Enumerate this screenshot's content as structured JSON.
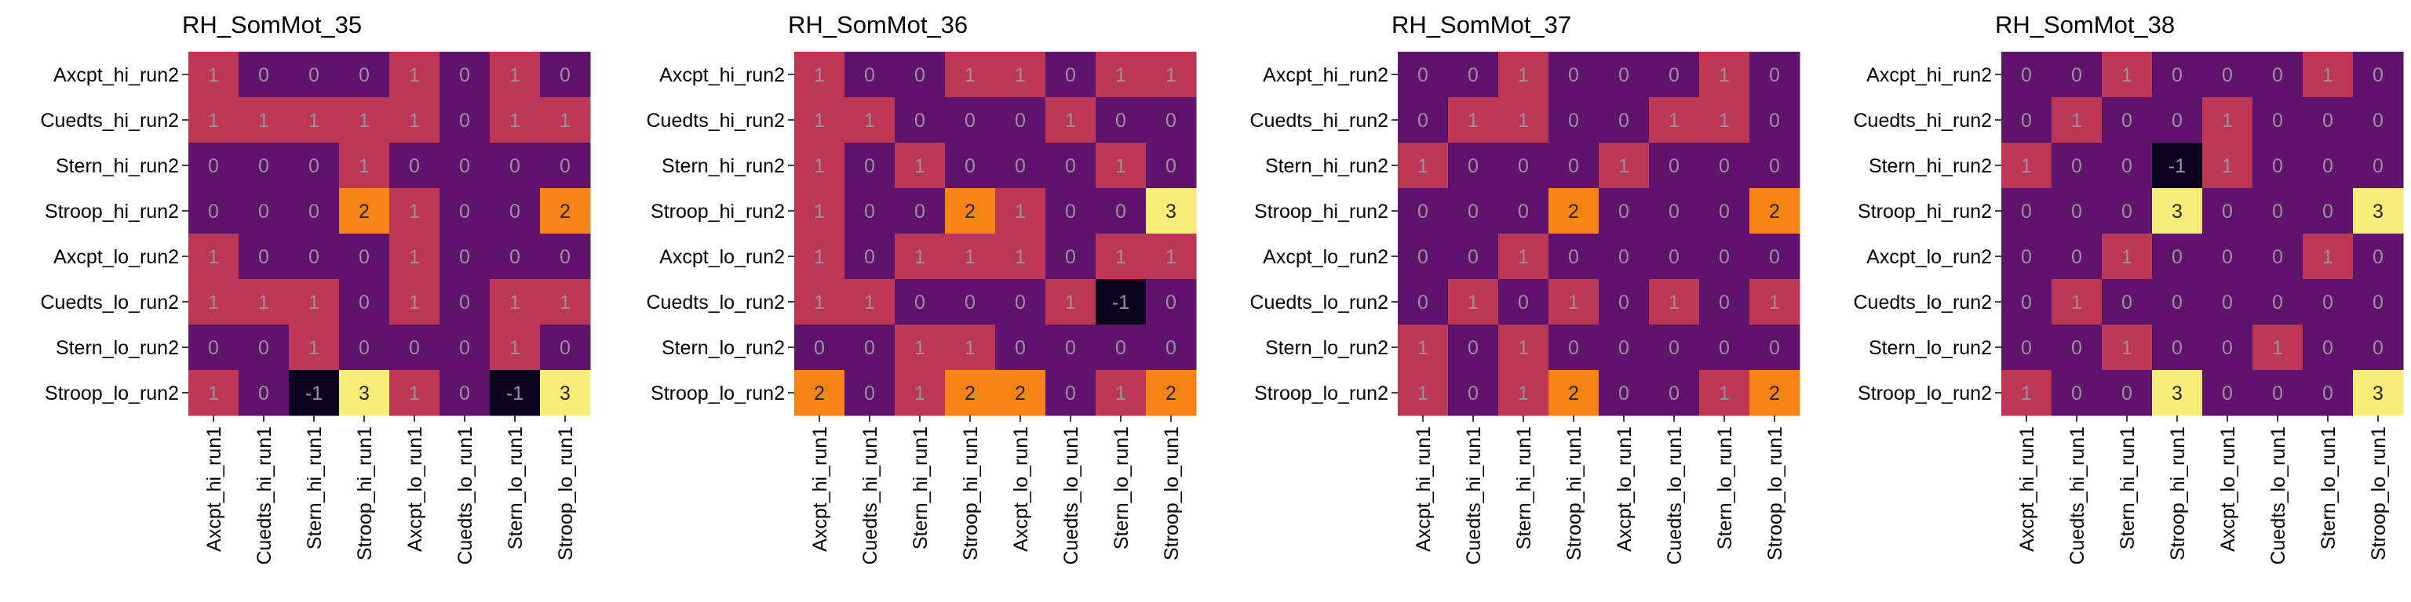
{
  "chart_data": [
    {
      "type": "heatmap",
      "title": "RH_SomMot_35",
      "rows": [
        "Axcpt_hi_run2",
        "Cuedts_hi_run2",
        "Stern_hi_run2",
        "Stroop_hi_run2",
        "Axcpt_lo_run2",
        "Cuedts_lo_run2",
        "Stern_lo_run2",
        "Stroop_lo_run2"
      ],
      "cols": [
        "Axcpt_hi_run1",
        "Cuedts_hi_run1",
        "Stern_hi_run1",
        "Stroop_hi_run1",
        "Axcpt_lo_run1",
        "Cuedts_lo_run1",
        "Stern_lo_run1",
        "Stroop_lo_run1"
      ],
      "values": [
        [
          1,
          0,
          0,
          0,
          1,
          0,
          1,
          0
        ],
        [
          1,
          1,
          1,
          1,
          1,
          0,
          1,
          1
        ],
        [
          0,
          0,
          0,
          1,
          0,
          0,
          0,
          0
        ],
        [
          0,
          0,
          0,
          2,
          1,
          0,
          0,
          2
        ],
        [
          1,
          0,
          0,
          0,
          1,
          0,
          0,
          0
        ],
        [
          1,
          1,
          1,
          0,
          1,
          0,
          1,
          1
        ],
        [
          0,
          0,
          1,
          0,
          0,
          0,
          1,
          0
        ],
        [
          1,
          0,
          -1,
          3,
          1,
          0,
          -1,
          3
        ]
      ],
      "colormap": "inferno",
      "vmin": -1.2,
      "vmax": 3.2
    },
    {
      "type": "heatmap",
      "title": "RH_SomMot_36",
      "rows": [
        "Axcpt_hi_run2",
        "Cuedts_hi_run2",
        "Stern_hi_run2",
        "Stroop_hi_run2",
        "Axcpt_lo_run2",
        "Cuedts_lo_run2",
        "Stern_lo_run2",
        "Stroop_lo_run2"
      ],
      "cols": [
        "Axcpt_hi_run1",
        "Cuedts_hi_run1",
        "Stern_hi_run1",
        "Stroop_hi_run1",
        "Axcpt_lo_run1",
        "Cuedts_lo_run1",
        "Stern_lo_run1",
        "Stroop_lo_run1"
      ],
      "values": [
        [
          1,
          0,
          0,
          1,
          1,
          0,
          1,
          1
        ],
        [
          1,
          1,
          0,
          0,
          0,
          1,
          0,
          0
        ],
        [
          1,
          0,
          1,
          0,
          0,
          0,
          1,
          0
        ],
        [
          1,
          0,
          0,
          2,
          1,
          0,
          0,
          3
        ],
        [
          1,
          0,
          1,
          1,
          1,
          0,
          1,
          1
        ],
        [
          1,
          1,
          0,
          0,
          0,
          1,
          -1,
          0
        ],
        [
          0,
          0,
          1,
          1,
          0,
          0,
          0,
          0
        ],
        [
          2,
          0,
          1,
          2,
          2,
          0,
          1,
          2
        ]
      ],
      "colormap": "inferno",
      "vmin": -1.2,
      "vmax": 3.2
    },
    {
      "type": "heatmap",
      "title": "RH_SomMot_37",
      "rows": [
        "Axcpt_hi_run2",
        "Cuedts_hi_run2",
        "Stern_hi_run2",
        "Stroop_hi_run2",
        "Axcpt_lo_run2",
        "Cuedts_lo_run2",
        "Stern_lo_run2",
        "Stroop_lo_run2"
      ],
      "cols": [
        "Axcpt_hi_run1",
        "Cuedts_hi_run1",
        "Stern_hi_run1",
        "Stroop_hi_run1",
        "Axcpt_lo_run1",
        "Cuedts_lo_run1",
        "Stern_lo_run1",
        "Stroop_lo_run1"
      ],
      "values": [
        [
          0,
          0,
          1,
          0,
          0,
          0,
          1,
          0
        ],
        [
          0,
          1,
          1,
          0,
          0,
          1,
          1,
          0
        ],
        [
          1,
          0,
          0,
          0,
          1,
          0,
          0,
          0
        ],
        [
          0,
          0,
          0,
          2,
          0,
          0,
          0,
          2
        ],
        [
          0,
          0,
          1,
          0,
          0,
          0,
          0,
          0
        ],
        [
          0,
          1,
          0,
          1,
          0,
          1,
          0,
          1
        ],
        [
          1,
          0,
          1,
          0,
          0,
          0,
          0,
          0
        ],
        [
          1,
          0,
          1,
          2,
          0,
          0,
          1,
          2
        ]
      ],
      "colormap": "inferno",
      "vmin": -1.2,
      "vmax": 3.2
    },
    {
      "type": "heatmap",
      "title": "RH_SomMot_38",
      "rows": [
        "Axcpt_hi_run2",
        "Cuedts_hi_run2",
        "Stern_hi_run2",
        "Stroop_hi_run2",
        "Axcpt_lo_run2",
        "Cuedts_lo_run2",
        "Stern_lo_run2",
        "Stroop_lo_run2"
      ],
      "cols": [
        "Axcpt_hi_run1",
        "Cuedts_hi_run1",
        "Stern_hi_run1",
        "Stroop_hi_run1",
        "Axcpt_lo_run1",
        "Cuedts_lo_run1",
        "Stern_lo_run1",
        "Stroop_lo_run1"
      ],
      "values": [
        [
          0,
          0,
          1,
          0,
          0,
          0,
          1,
          0
        ],
        [
          0,
          1,
          0,
          0,
          1,
          0,
          0,
          0
        ],
        [
          1,
          0,
          0,
          -1,
          1,
          0,
          0,
          0
        ],
        [
          0,
          0,
          0,
          3,
          0,
          0,
          0,
          3
        ],
        [
          0,
          0,
          1,
          0,
          0,
          0,
          1,
          0
        ],
        [
          0,
          1,
          0,
          0,
          0,
          0,
          0,
          0
        ],
        [
          0,
          0,
          1,
          0,
          0,
          1,
          0,
          0
        ],
        [
          1,
          0,
          0,
          3,
          0,
          0,
          0,
          3
        ]
      ],
      "colormap": "inferno",
      "vmin": -1.2,
      "vmax": 3.2
    }
  ]
}
